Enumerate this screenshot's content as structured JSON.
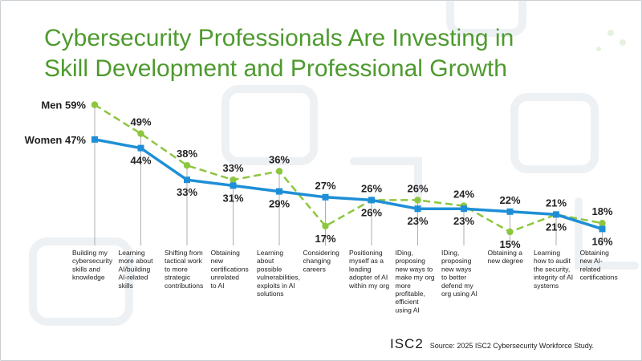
{
  "title_line1": "Cybersecurity Professionals Are Investing in",
  "title_line2": "Skill Development and Professional Growth",
  "brand": "ISC2",
  "source": "Source: 2025 ISC2 Cybersecurity Workforce Study.",
  "colors": {
    "title": "#4e9a2f",
    "women": "#1e8fd6",
    "men": "#8dc63f",
    "gridline": "#9a9a9a"
  },
  "chart_data": {
    "type": "line",
    "title": "Cybersecurity Professionals Are Investing in Skill Development and Professional Growth",
    "xlabel": "",
    "ylabel": "",
    "ylim": [
      10,
      60
    ],
    "grid": false,
    "categories": [
      [
        "Building my",
        "cybersecurity",
        "skills and",
        "knowledge"
      ],
      [
        "Learning",
        "more about",
        "AI/building",
        "AI-related",
        "skills"
      ],
      [
        "Shifting from",
        "tactical work",
        "to more",
        "strategic",
        "contributions"
      ],
      [
        "Obtaining",
        "new",
        "certifications",
        "unrelated",
        "to AI"
      ],
      [
        "Learning",
        "about",
        "possible",
        "vulnerabilities,",
        "exploits in AI",
        "solutions"
      ],
      [
        "Considering",
        "changing",
        "careers"
      ],
      [
        "Positioning",
        "myself as a",
        "leading",
        "adopter of AI",
        "within my org"
      ],
      [
        "IDing,",
        "proposing",
        "new ways to",
        "make my org",
        "more",
        "profitable,",
        "efficient",
        "using AI"
      ],
      [
        "IDing,",
        "proposing",
        "new ways",
        "to better",
        "defend my",
        "org using AI"
      ],
      [
        "Obtaining a",
        "new degree"
      ],
      [
        "Learning",
        "how to audit",
        "the security,",
        "integrity of AI",
        "systems"
      ],
      [
        "Obtaining",
        "new AI-",
        "related",
        "certifications"
      ]
    ],
    "series": [
      {
        "name": "Men",
        "legend_label": "Men 59%",
        "values": [
          59,
          49,
          38,
          33,
          36,
          17,
          26,
          26,
          24,
          15,
          21,
          18
        ],
        "labels": [
          "",
          "49%",
          "38%",
          "33%",
          "36%",
          "17%",
          "26%",
          "26%",
          "24%",
          "15%",
          "21%",
          "18%"
        ],
        "style": "dashed"
      },
      {
        "name": "Women",
        "legend_label": "Women 47%",
        "values": [
          47,
          44,
          33,
          31,
          29,
          27,
          26,
          23,
          23,
          22,
          21,
          16
        ],
        "labels": [
          "",
          "44%",
          "33%",
          "31%",
          "29%",
          "27%",
          "26%",
          "23%",
          "23%",
          "22%",
          "21%",
          "16%"
        ],
        "style": "solid"
      }
    ]
  }
}
